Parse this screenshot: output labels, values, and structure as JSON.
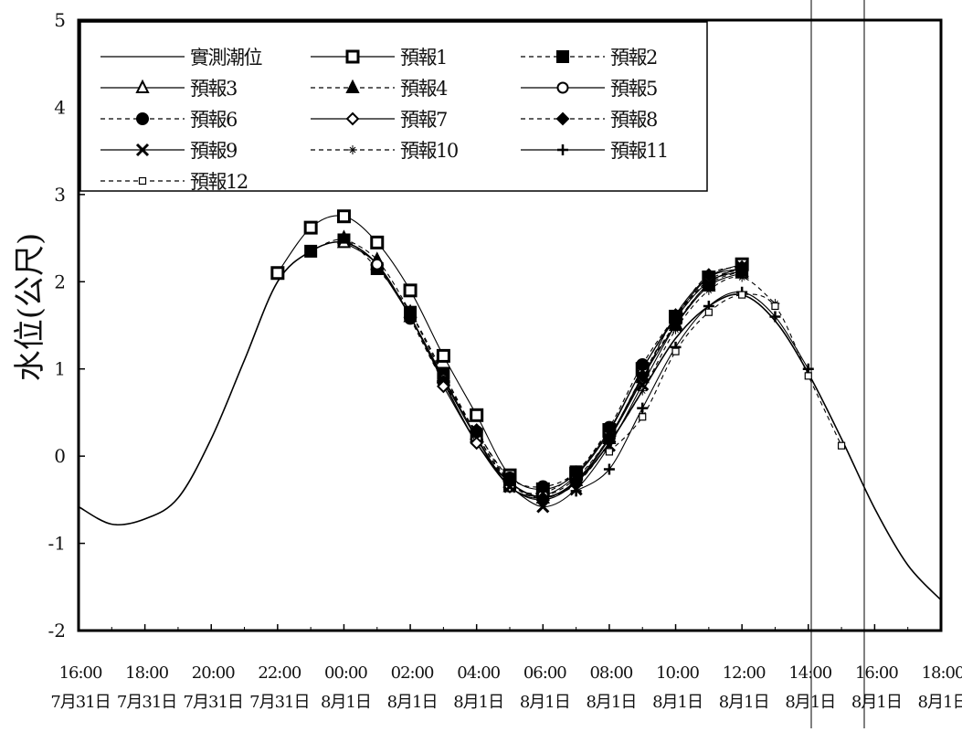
{
  "chart_data": {
    "type": "line",
    "ylabel": "水位(公尺)",
    "ylim": [
      -2,
      5
    ],
    "yticks": [
      "5",
      "4",
      "3",
      "2",
      "1",
      "0",
      "-1",
      "-2"
    ],
    "x_range_hours": [
      -8,
      18
    ],
    "x_tick_times": [
      "16:00",
      "18:00",
      "20:00",
      "22:00",
      "00:00",
      "02:00",
      "04:00",
      "06:00",
      "08:00",
      "10:00",
      "12:00",
      "14:00",
      "16:00",
      "18:00"
    ],
    "x_tick_dates": [
      "7月31日",
      "7月31日",
      "7月31日",
      "7月31日",
      "8月1日",
      "8月1日",
      "8月1日",
      "8月1日",
      "8月1日",
      "8月1日",
      "8月1日",
      "8月1日",
      "8月1日",
      "8月1日"
    ],
    "legend_position": "top-left",
    "series": [
      {
        "name": "實測潮位",
        "marker": "none",
        "dash": "solid",
        "points": [
          [
            -8,
            -0.58
          ],
          [
            -7,
            -0.78
          ],
          [
            -6,
            -0.72
          ],
          [
            -5,
            -0.48
          ],
          [
            -4,
            0.2
          ],
          [
            -3,
            1.1
          ],
          [
            -2,
            2.0
          ],
          [
            -1,
            2.35
          ],
          [
            0,
            2.45
          ],
          [
            1,
            2.2
          ],
          [
            2,
            1.6
          ],
          [
            3,
            0.85
          ],
          [
            4,
            0.15
          ],
          [
            5,
            -0.3
          ],
          [
            6,
            -0.47
          ],
          [
            7,
            -0.3
          ],
          [
            8,
            0.15
          ],
          [
            9,
            0.75
          ],
          [
            10,
            1.35
          ],
          [
            11,
            1.72
          ],
          [
            12,
            1.85
          ],
          [
            13,
            1.55
          ],
          [
            14,
            0.95
          ],
          [
            15,
            0.2
          ],
          [
            16,
            -0.6
          ],
          [
            17,
            -1.25
          ],
          [
            18,
            -1.65
          ]
        ]
      },
      {
        "name": "預報1",
        "marker": "open-square",
        "dash": "solid",
        "points": [
          [
            -2,
            2.1
          ],
          [
            -1,
            2.62
          ],
          [
            0,
            2.75
          ],
          [
            1,
            2.45
          ],
          [
            2,
            1.9
          ],
          [
            3,
            1.15
          ],
          [
            4,
            0.47
          ],
          [
            5,
            -0.22
          ],
          [
            6,
            -0.38
          ],
          [
            7,
            -0.2
          ],
          [
            8,
            0.3
          ],
          [
            9,
            1.0
          ],
          [
            10,
            1.6
          ],
          [
            11,
            2.05
          ],
          [
            12,
            2.2
          ]
        ]
      },
      {
        "name": "預報2",
        "marker": "filled-square",
        "dash": "dashed",
        "points": [
          [
            -1,
            2.35
          ],
          [
            0,
            2.48
          ],
          [
            1,
            2.15
          ],
          [
            2,
            1.65
          ],
          [
            3,
            0.95
          ],
          [
            4,
            0.25
          ],
          [
            5,
            -0.32
          ],
          [
            6,
            -0.42
          ],
          [
            7,
            -0.18
          ],
          [
            8,
            0.3
          ],
          [
            9,
            1.0
          ],
          [
            10,
            1.58
          ],
          [
            11,
            2.0
          ],
          [
            12,
            2.12
          ]
        ]
      },
      {
        "name": "預報3",
        "marker": "open-triangle",
        "dash": "solid",
        "points": [
          [
            0,
            2.45
          ],
          [
            1,
            2.2
          ],
          [
            2,
            1.6
          ],
          [
            3,
            0.9
          ],
          [
            4,
            0.22
          ],
          [
            5,
            -0.35
          ],
          [
            6,
            -0.48
          ],
          [
            7,
            -0.28
          ],
          [
            8,
            0.2
          ],
          [
            9,
            0.9
          ],
          [
            10,
            1.5
          ],
          [
            11,
            1.95
          ],
          [
            12,
            2.1
          ]
        ]
      },
      {
        "name": "預報4",
        "marker": "filled-triangle",
        "dash": "dashed",
        "points": [
          [
            0,
            2.5
          ],
          [
            1,
            2.25
          ],
          [
            2,
            1.65
          ],
          [
            3,
            0.92
          ],
          [
            4,
            0.25
          ],
          [
            5,
            -0.3
          ],
          [
            6,
            -0.45
          ],
          [
            7,
            -0.25
          ],
          [
            8,
            0.22
          ],
          [
            9,
            0.92
          ],
          [
            10,
            1.52
          ],
          [
            11,
            1.97
          ],
          [
            12,
            2.12
          ]
        ]
      },
      {
        "name": "預報5",
        "marker": "open-circle",
        "dash": "solid",
        "points": [
          [
            1,
            2.2
          ],
          [
            2,
            1.6
          ],
          [
            3,
            0.88
          ],
          [
            4,
            0.2
          ],
          [
            5,
            -0.35
          ],
          [
            6,
            -0.45
          ],
          [
            7,
            -0.22
          ],
          [
            8,
            0.28
          ],
          [
            9,
            1.0
          ],
          [
            10,
            1.58
          ],
          [
            11,
            2.0
          ],
          [
            12,
            2.12
          ]
        ]
      },
      {
        "name": "預報6",
        "marker": "filled-circle",
        "dash": "dashed",
        "points": [
          [
            2,
            1.58
          ],
          [
            3,
            0.85
          ],
          [
            4,
            0.28
          ],
          [
            5,
            -0.25
          ],
          [
            6,
            -0.35
          ],
          [
            7,
            -0.18
          ],
          [
            8,
            0.33
          ],
          [
            9,
            1.05
          ],
          [
            10,
            1.6
          ],
          [
            11,
            2.02
          ],
          [
            12,
            2.14
          ]
        ]
      },
      {
        "name": "預報7",
        "marker": "open-diamond",
        "dash": "solid",
        "points": [
          [
            3,
            0.8
          ],
          [
            4,
            0.15
          ],
          [
            5,
            -0.35
          ],
          [
            6,
            -0.5
          ],
          [
            7,
            -0.3
          ],
          [
            8,
            0.2
          ],
          [
            9,
            0.88
          ],
          [
            10,
            1.62
          ],
          [
            11,
            2.05
          ],
          [
            12,
            2.15
          ]
        ]
      },
      {
        "name": "預報8",
        "marker": "filled-diamond",
        "dash": "dashed",
        "points": [
          [
            4,
            0.3
          ],
          [
            5,
            -0.3
          ],
          [
            6,
            -0.48
          ],
          [
            7,
            -0.28
          ],
          [
            8,
            0.22
          ],
          [
            9,
            0.92
          ],
          [
            10,
            1.6
          ],
          [
            11,
            2.08
          ],
          [
            12,
            2.17
          ]
        ]
      },
      {
        "name": "預報9",
        "marker": "x",
        "dash": "solid",
        "points": [
          [
            5,
            -0.35
          ],
          [
            6,
            -0.58
          ],
          [
            7,
            -0.38
          ],
          [
            8,
            0.12
          ],
          [
            9,
            0.82
          ],
          [
            10,
            1.5
          ],
          [
            11,
            1.98
          ],
          [
            12,
            2.17
          ]
        ]
      },
      {
        "name": "預報10",
        "marker": "star",
        "dash": "dashed",
        "points": [
          [
            6,
            -0.5
          ],
          [
            7,
            -0.32
          ],
          [
            8,
            0.15
          ],
          [
            9,
            0.75
          ],
          [
            10,
            1.45
          ],
          [
            11,
            1.9
          ],
          [
            12,
            2.05
          ],
          [
            13,
            1.75
          ]
        ]
      },
      {
        "name": "預報11",
        "marker": "plus",
        "dash": "solid",
        "points": [
          [
            7,
            -0.4
          ],
          [
            8,
            -0.15
          ],
          [
            9,
            0.55
          ],
          [
            10,
            1.25
          ],
          [
            11,
            1.72
          ],
          [
            12,
            1.88
          ],
          [
            13,
            1.6
          ],
          [
            14,
            1.0
          ]
        ]
      },
      {
        "name": "預報12",
        "marker": "small-open-square",
        "dash": "dashed",
        "points": [
          [
            8,
            0.05
          ],
          [
            9,
            0.45
          ],
          [
            10,
            1.2
          ],
          [
            11,
            1.65
          ],
          [
            12,
            1.85
          ],
          [
            13,
            1.72
          ],
          [
            14,
            0.92
          ],
          [
            15,
            0.12
          ]
        ]
      }
    ]
  }
}
